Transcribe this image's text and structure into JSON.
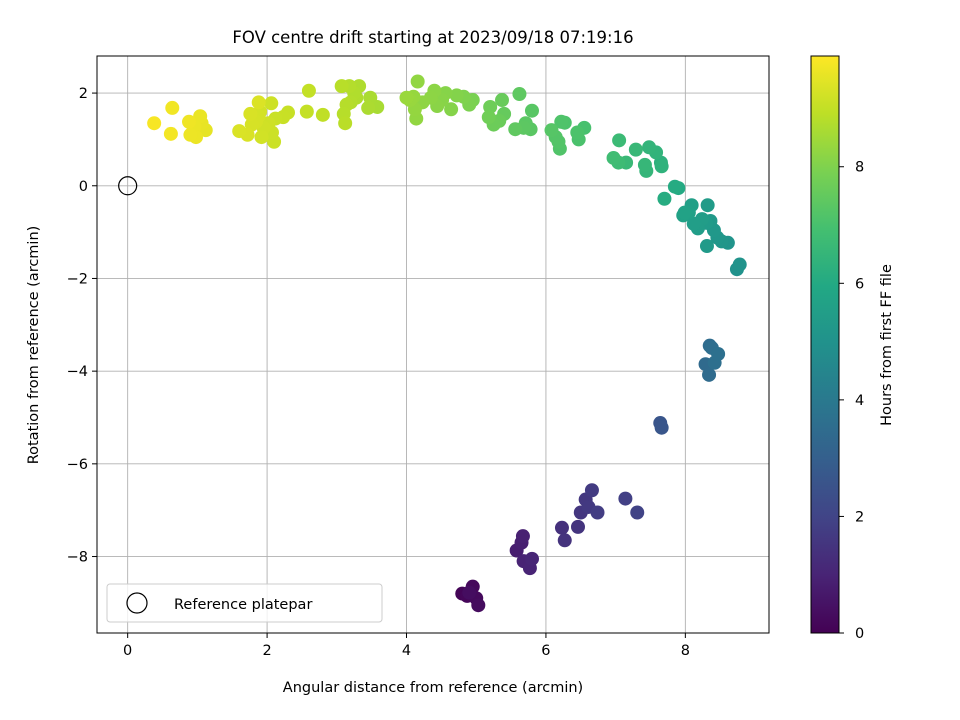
{
  "chart_data": {
    "type": "scatter",
    "title": "FOV centre drift starting at 2023/09/18 07:19:16",
    "xlabel": "Angular distance from reference (arcmin)",
    "ylabel": "Rotation from reference (arcmin)",
    "xlim": [
      -0.44,
      9.2
    ],
    "ylim": [
      -9.65,
      2.8
    ],
    "xticks": [
      0,
      2,
      4,
      6,
      8
    ],
    "yticks": [
      2,
      0,
      -2,
      -4,
      -6,
      -8
    ],
    "grid": true,
    "legend": {
      "placement": "lower-left",
      "entries": [
        "Reference platepar"
      ]
    },
    "reference_point": {
      "x": 0,
      "y": 0
    },
    "colorbar": {
      "label": "Hours from first FF file",
      "range": [
        0,
        9.9
      ],
      "ticks": [
        0,
        2,
        4,
        6,
        8
      ],
      "colormap": "viridis"
    },
    "points": [
      {
        "x": 4.8,
        "y": -8.8,
        "c": 0.1
      },
      {
        "x": 4.87,
        "y": -8.85,
        "c": 0.15
      },
      {
        "x": 4.95,
        "y": -8.65,
        "c": 0.2
      },
      {
        "x": 5.0,
        "y": -8.9,
        "c": 0.25
      },
      {
        "x": 5.03,
        "y": -9.05,
        "c": 0.3
      },
      {
        "x": 4.9,
        "y": -8.78,
        "c": 0.35
      },
      {
        "x": 5.58,
        "y": -7.87,
        "c": 0.8
      },
      {
        "x": 5.65,
        "y": -7.7,
        "c": 0.85
      },
      {
        "x": 5.67,
        "y": -7.56,
        "c": 0.9
      },
      {
        "x": 5.68,
        "y": -8.1,
        "c": 0.95
      },
      {
        "x": 5.77,
        "y": -8.25,
        "c": 1.0
      },
      {
        "x": 5.8,
        "y": -8.05,
        "c": 1.05
      },
      {
        "x": 6.23,
        "y": -7.38,
        "c": 1.4
      },
      {
        "x": 6.27,
        "y": -7.65,
        "c": 1.45
      },
      {
        "x": 6.46,
        "y": -7.36,
        "c": 1.5
      },
      {
        "x": 6.5,
        "y": -7.05,
        "c": 1.55
      },
      {
        "x": 6.57,
        "y": -6.77,
        "c": 1.6
      },
      {
        "x": 6.61,
        "y": -6.93,
        "c": 1.65
      },
      {
        "x": 6.66,
        "y": -6.57,
        "c": 1.7
      },
      {
        "x": 6.74,
        "y": -7.05,
        "c": 1.75
      },
      {
        "x": 7.14,
        "y": -6.75,
        "c": 1.85
      },
      {
        "x": 7.31,
        "y": -7.05,
        "c": 1.95
      },
      {
        "x": 7.64,
        "y": -5.12,
        "c": 2.6
      },
      {
        "x": 7.66,
        "y": -5.22,
        "c": 2.65
      },
      {
        "x": 8.29,
        "y": -3.85,
        "c": 3.4
      },
      {
        "x": 8.34,
        "y": -4.08,
        "c": 3.45
      },
      {
        "x": 8.35,
        "y": -3.45,
        "c": 3.5
      },
      {
        "x": 8.38,
        "y": -3.5,
        "c": 3.55
      },
      {
        "x": 8.42,
        "y": -3.82,
        "c": 3.6
      },
      {
        "x": 8.47,
        "y": -3.63,
        "c": 3.65
      },
      {
        "x": 8.74,
        "y": -1.8,
        "c": 5.0
      },
      {
        "x": 8.78,
        "y": -1.7,
        "c": 5.05
      },
      {
        "x": 8.61,
        "y": -1.23,
        "c": 5.1
      },
      {
        "x": 8.52,
        "y": -1.2,
        "c": 5.15
      },
      {
        "x": 8.46,
        "y": -1.12,
        "c": 5.2
      },
      {
        "x": 8.41,
        "y": -0.96,
        "c": 5.25
      },
      {
        "x": 8.36,
        "y": -0.76,
        "c": 5.3
      },
      {
        "x": 8.31,
        "y": -1.3,
        "c": 5.35
      },
      {
        "x": 8.3,
        "y": -0.8,
        "c": 5.38
      },
      {
        "x": 8.32,
        "y": -0.42,
        "c": 5.4
      },
      {
        "x": 8.24,
        "y": -0.72,
        "c": 5.45
      },
      {
        "x": 8.18,
        "y": -0.92,
        "c": 5.48
      },
      {
        "x": 8.12,
        "y": -0.82,
        "c": 5.5
      },
      {
        "x": 8.09,
        "y": -0.42,
        "c": 5.55
      },
      {
        "x": 8.05,
        "y": -0.58,
        "c": 5.6
      },
      {
        "x": 7.97,
        "y": -0.64,
        "c": 5.65
      },
      {
        "x": 7.99,
        "y": -0.58,
        "c": 5.7
      },
      {
        "x": 7.9,
        "y": -0.05,
        "c": 6.0
      },
      {
        "x": 7.85,
        "y": -0.02,
        "c": 6.05
      },
      {
        "x": 7.7,
        "y": -0.28,
        "c": 6.1
      },
      {
        "x": 7.65,
        "y": 0.5,
        "c": 6.3
      },
      {
        "x": 7.66,
        "y": 0.42,
        "c": 6.35
      },
      {
        "x": 7.58,
        "y": 0.72,
        "c": 6.4
      },
      {
        "x": 7.48,
        "y": 0.83,
        "c": 6.45
      },
      {
        "x": 7.44,
        "y": 0.32,
        "c": 6.5
      },
      {
        "x": 7.42,
        "y": 0.45,
        "c": 6.55
      },
      {
        "x": 7.29,
        "y": 0.78,
        "c": 6.6
      },
      {
        "x": 7.15,
        "y": 0.5,
        "c": 6.65
      },
      {
        "x": 7.05,
        "y": 0.98,
        "c": 6.7
      },
      {
        "x": 7.04,
        "y": 0.5,
        "c": 6.75
      },
      {
        "x": 6.97,
        "y": 0.6,
        "c": 6.8
      },
      {
        "x": 6.55,
        "y": 1.25,
        "c": 7.0
      },
      {
        "x": 6.47,
        "y": 1.0,
        "c": 7.05
      },
      {
        "x": 6.45,
        "y": 1.15,
        "c": 7.08
      },
      {
        "x": 6.27,
        "y": 1.36,
        "c": 7.1
      },
      {
        "x": 6.22,
        "y": 1.38,
        "c": 7.13
      },
      {
        "x": 6.2,
        "y": 0.8,
        "c": 7.16
      },
      {
        "x": 6.18,
        "y": 0.95,
        "c": 7.2
      },
      {
        "x": 6.14,
        "y": 1.05,
        "c": 7.23
      },
      {
        "x": 6.08,
        "y": 1.2,
        "c": 7.26
      },
      {
        "x": 5.8,
        "y": 1.62,
        "c": 7.3
      },
      {
        "x": 5.78,
        "y": 1.22,
        "c": 7.33
      },
      {
        "x": 5.71,
        "y": 1.35,
        "c": 7.36
      },
      {
        "x": 5.68,
        "y": 1.25,
        "c": 7.39
      },
      {
        "x": 5.62,
        "y": 1.98,
        "c": 7.42
      },
      {
        "x": 5.56,
        "y": 1.22,
        "c": 7.45
      },
      {
        "x": 5.4,
        "y": 1.55,
        "c": 7.55
      },
      {
        "x": 5.37,
        "y": 1.85,
        "c": 7.6
      },
      {
        "x": 5.33,
        "y": 1.4,
        "c": 7.63
      },
      {
        "x": 5.25,
        "y": 1.32,
        "c": 7.66
      },
      {
        "x": 5.2,
        "y": 1.7,
        "c": 7.7
      },
      {
        "x": 5.18,
        "y": 1.48,
        "c": 7.74
      },
      {
        "x": 4.95,
        "y": 1.85,
        "c": 7.9
      },
      {
        "x": 4.9,
        "y": 1.75,
        "c": 7.95
      },
      {
        "x": 4.82,
        "y": 1.92,
        "c": 8.0
      },
      {
        "x": 4.72,
        "y": 1.95,
        "c": 8.05
      },
      {
        "x": 4.64,
        "y": 1.65,
        "c": 8.08
      },
      {
        "x": 4.56,
        "y": 2.0,
        "c": 8.1
      },
      {
        "x": 4.51,
        "y": 1.85,
        "c": 8.12
      },
      {
        "x": 4.44,
        "y": 1.72,
        "c": 8.15
      },
      {
        "x": 4.4,
        "y": 2.05,
        "c": 8.18
      },
      {
        "x": 4.35,
        "y": 1.9,
        "c": 8.2
      },
      {
        "x": 4.23,
        "y": 1.8,
        "c": 8.23
      },
      {
        "x": 4.16,
        "y": 2.25,
        "c": 8.26
      },
      {
        "x": 4.14,
        "y": 1.45,
        "c": 8.28
      },
      {
        "x": 4.12,
        "y": 1.65,
        "c": 8.3
      },
      {
        "x": 4.1,
        "y": 1.92,
        "c": 8.33
      },
      {
        "x": 4.05,
        "y": 1.85,
        "c": 8.36
      },
      {
        "x": 4.0,
        "y": 1.9,
        "c": 8.4
      },
      {
        "x": 3.58,
        "y": 1.7,
        "c": 8.6
      },
      {
        "x": 3.48,
        "y": 1.9,
        "c": 8.63
      },
      {
        "x": 3.45,
        "y": 1.68,
        "c": 8.66
      },
      {
        "x": 3.32,
        "y": 2.15,
        "c": 8.7
      },
      {
        "x": 3.28,
        "y": 1.9,
        "c": 8.72
      },
      {
        "x": 3.25,
        "y": 2.0,
        "c": 8.74
      },
      {
        "x": 3.2,
        "y": 1.8,
        "c": 8.76
      },
      {
        "x": 3.18,
        "y": 2.15,
        "c": 8.78
      },
      {
        "x": 3.14,
        "y": 1.75,
        "c": 8.8
      },
      {
        "x": 3.1,
        "y": 1.55,
        "c": 8.82
      },
      {
        "x": 3.07,
        "y": 2.15,
        "c": 8.84
      },
      {
        "x": 3.12,
        "y": 1.35,
        "c": 8.86
      },
      {
        "x": 2.8,
        "y": 1.53,
        "c": 8.95
      },
      {
        "x": 2.6,
        "y": 2.05,
        "c": 9.0
      },
      {
        "x": 2.57,
        "y": 1.6,
        "c": 9.02
      },
      {
        "x": 2.3,
        "y": 1.58,
        "c": 9.06
      },
      {
        "x": 2.23,
        "y": 1.48,
        "c": 9.08
      },
      {
        "x": 2.12,
        "y": 1.45,
        "c": 9.1
      },
      {
        "x": 2.1,
        "y": 0.95,
        "c": 9.12
      },
      {
        "x": 2.07,
        "y": 1.15,
        "c": 9.14
      },
      {
        "x": 2.06,
        "y": 1.78,
        "c": 9.16
      },
      {
        "x": 2.02,
        "y": 1.35,
        "c": 9.18
      },
      {
        "x": 1.95,
        "y": 1.25,
        "c": 9.2
      },
      {
        "x": 1.92,
        "y": 1.05,
        "c": 9.22
      },
      {
        "x": 1.9,
        "y": 1.6,
        "c": 9.24
      },
      {
        "x": 1.88,
        "y": 1.5,
        "c": 9.26
      },
      {
        "x": 1.84,
        "y": 1.38,
        "c": 9.28
      },
      {
        "x": 1.78,
        "y": 1.32,
        "c": 9.3
      },
      {
        "x": 1.76,
        "y": 1.55,
        "c": 9.32
      },
      {
        "x": 1.72,
        "y": 1.1,
        "c": 9.34
      },
      {
        "x": 1.6,
        "y": 1.18,
        "c": 9.36
      },
      {
        "x": 1.88,
        "y": 1.8,
        "c": 9.38
      },
      {
        "x": 1.12,
        "y": 1.2,
        "c": 9.55
      },
      {
        "x": 1.06,
        "y": 1.35,
        "c": 9.58
      },
      {
        "x": 1.04,
        "y": 1.5,
        "c": 9.6
      },
      {
        "x": 0.96,
        "y": 1.28,
        "c": 9.62
      },
      {
        "x": 0.98,
        "y": 1.05,
        "c": 9.64
      },
      {
        "x": 0.9,
        "y": 1.1,
        "c": 9.66
      },
      {
        "x": 0.88,
        "y": 1.38,
        "c": 9.68
      },
      {
        "x": 0.64,
        "y": 1.68,
        "c": 9.72
      },
      {
        "x": 0.62,
        "y": 1.12,
        "c": 9.75
      },
      {
        "x": 0.38,
        "y": 1.35,
        "c": 9.8
      }
    ]
  }
}
